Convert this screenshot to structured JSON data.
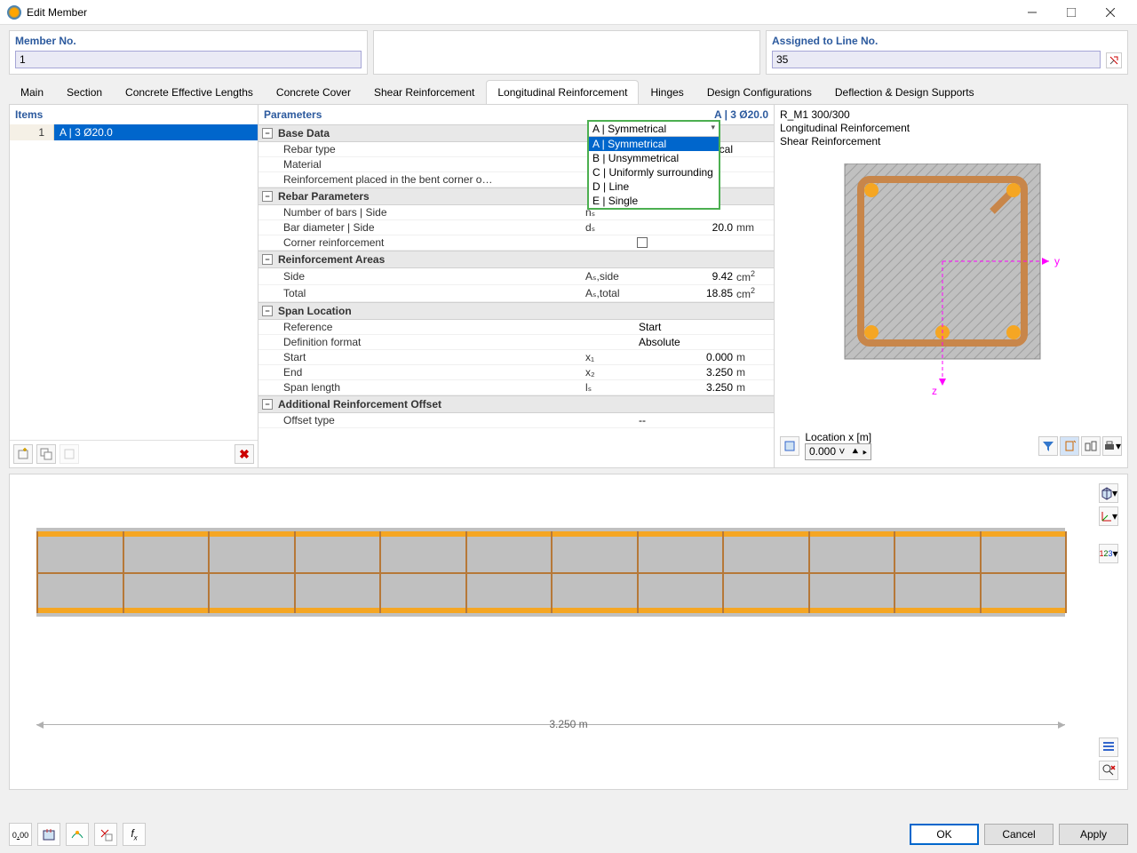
{
  "window": {
    "title": "Edit Member"
  },
  "header": {
    "memberNo": {
      "label": "Member No.",
      "value": "1"
    },
    "assignedTo": {
      "label": "Assigned to Line No.",
      "value": "35"
    }
  },
  "tabs": {
    "list": [
      "Main",
      "Section",
      "Concrete Effective Lengths",
      "Concrete Cover",
      "Shear Reinforcement",
      "Longitudinal Reinforcement",
      "Hinges",
      "Design Configurations",
      "Deflection & Design Supports"
    ],
    "activeIndex": 5
  },
  "items": {
    "header": "Items",
    "rows": [
      {
        "num": "1",
        "label": "A | 3 Ø20.0"
      }
    ]
  },
  "parameters": {
    "header": "Parameters",
    "headerRight": "A | 3 Ø20.0",
    "groups": [
      {
        "title": "Base Data",
        "rows": [
          {
            "label": "Rebar type",
            "sym": "",
            "val": "A | Symmetrical",
            "unit": ""
          },
          {
            "label": "Material",
            "sym": "",
            "val": "",
            "unit": ""
          },
          {
            "label": "Reinforcement placed in the bent corner o…",
            "sym": "",
            "val": "",
            "unit": ""
          }
        ]
      },
      {
        "title": "Rebar Parameters",
        "rows": [
          {
            "label": "Number of bars | Side",
            "sym": "nₛ",
            "val": "",
            "unit": ""
          },
          {
            "label": "Bar diameter | Side",
            "sym": "dₛ",
            "val": "20.0",
            "unit": "mm"
          },
          {
            "label": "Corner reinforcement",
            "sym": "",
            "checkbox": true
          }
        ]
      },
      {
        "title": "Reinforcement Areas",
        "rows": [
          {
            "label": "Side",
            "sym": "Aₛ,side",
            "val": "9.42",
            "unit": "cm²"
          },
          {
            "label": "Total",
            "sym": "Aₛ,total",
            "val": "18.85",
            "unit": "cm²"
          }
        ]
      },
      {
        "title": "Span Location",
        "rows": [
          {
            "label": "Reference",
            "sym": "",
            "val": "Start",
            "unit": "",
            "left": true
          },
          {
            "label": "Definition format",
            "sym": "",
            "val": "Absolute",
            "unit": "",
            "left": true
          },
          {
            "label": "Start",
            "sym": "x₁",
            "val": "0.000",
            "unit": "m"
          },
          {
            "label": "End",
            "sym": "x₂",
            "val": "3.250",
            "unit": "m"
          },
          {
            "label": "Span length",
            "sym": "lₛ",
            "val": "3.250",
            "unit": "m"
          }
        ]
      },
      {
        "title": "Additional Reinforcement Offset",
        "rows": [
          {
            "label": "Offset type",
            "sym": "",
            "val": "--",
            "unit": "",
            "left": true
          }
        ]
      }
    ]
  },
  "dropdown": {
    "selected": "A | Symmetrical",
    "options": [
      "A | Symmetrical",
      "B | Unsymmetrical",
      "C | Uniformly surrounding",
      "D | Line",
      "E | Single"
    ],
    "highlightedIndex": 0,
    "border_color": "#4caf50"
  },
  "preview": {
    "sectionName": "R_M1 300/300",
    "line2": "Longitudinal Reinforcement",
    "line3": "Shear Reinforcement",
    "locationLabel": "Location x [m]",
    "locationValue": "0.000",
    "section_style": {
      "bg": "#c0c0c0",
      "hatch": "#9e9e9e",
      "core": "#e5e5e5",
      "stirrup_color": "#c8864a",
      "stirrup_width": 8,
      "rebar_color": "#f5a623",
      "rebar_r": 8,
      "axis_color": "#ff00ff"
    }
  },
  "elevation": {
    "length_label": "3.250 m",
    "beam": {
      "fill": "#c0c0c0",
      "bar_color": "#f5a623",
      "stirrup_color": "#b67838",
      "stirrup_count": 12
    }
  },
  "footer": {
    "ok": "OK",
    "cancel": "Cancel",
    "apply": "Apply"
  }
}
